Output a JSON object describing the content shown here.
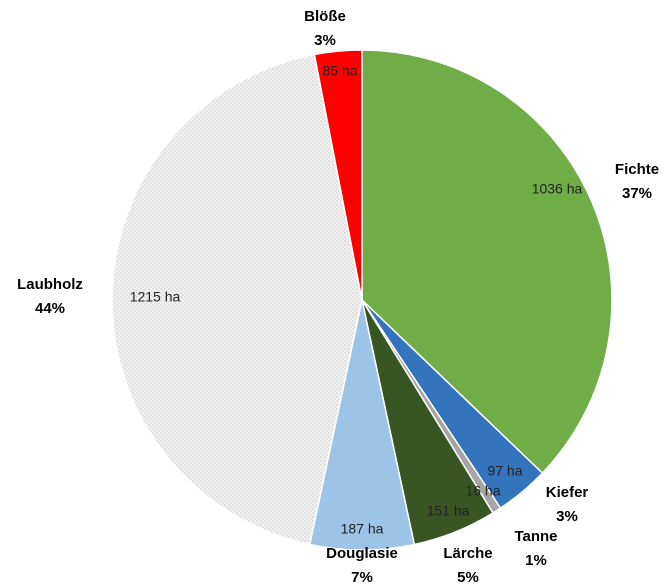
{
  "chart_data": {
    "type": "pie",
    "categories": [
      "Fichte",
      "Kiefer",
      "Tanne",
      "Lärche",
      "Douglasie",
      "Laubholz",
      "Blöße"
    ],
    "values": [
      1036,
      97,
      16,
      151,
      187,
      1215,
      85
    ],
    "value_labels": [
      "1036 ha",
      "97 ha",
      "16 ha",
      "151 ha",
      "187 ha",
      "1215 ha",
      "85 ha"
    ],
    "percent_labels": [
      "37%",
      "3%",
      "1%",
      "5%",
      "7%",
      "44%",
      "3%"
    ],
    "colors": [
      "#70ad47",
      "#3374bd",
      "#a5a5a5",
      "#375623",
      "#9dc3e6",
      "#e6e6e6",
      "#ff0000"
    ]
  }
}
